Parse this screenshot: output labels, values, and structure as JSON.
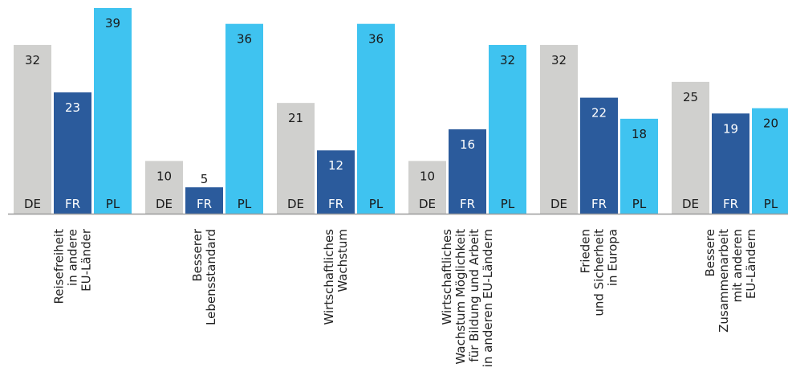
{
  "chart_data": {
    "type": "bar",
    "categories": [
      [
        "Reisefreiheit",
        "in andere",
        "EU-Länder"
      ],
      [
        "Besserer",
        "Lebensstandard"
      ],
      [
        "Wirtschaftliches",
        "Wachstum"
      ],
      [
        "Wirtschaftliches",
        "Wachstum Möglichkeit",
        "für Bildung und Arbeit",
        "in anderen EU-Ländern"
      ],
      [
        "Frieden",
        "und Sicherheit",
        "in Europa"
      ],
      [
        "Bessere",
        "Zusammenarbeit",
        "mit anderen",
        "EU-Ländern"
      ]
    ],
    "series": [
      {
        "name": "DE",
        "color": "#d0d0ce",
        "values": [
          32,
          10,
          21,
          10,
          32,
          25
        ]
      },
      {
        "name": "FR",
        "color": "#2b5b9c",
        "values": [
          23,
          5,
          12,
          16,
          22,
          19
        ]
      },
      {
        "name": "PL",
        "color": "#3fc3f0",
        "values": [
          39,
          36,
          36,
          32,
          18,
          20
        ]
      }
    ]
  }
}
